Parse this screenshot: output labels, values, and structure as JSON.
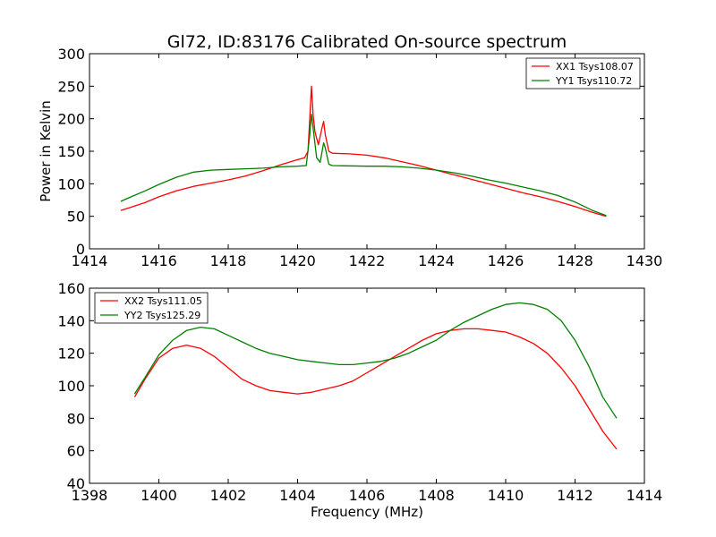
{
  "figure": {
    "title": "Gl72, ID:83176 Calibrated On-source spectrum",
    "ylabel": "Power in Kelvin",
    "xlabel": "Frequency (MHz)"
  },
  "chart_data": [
    {
      "type": "line",
      "title": "Gl72, ID:83176 Calibrated On-source spectrum",
      "xlabel": "",
      "ylabel": "Power in Kelvin",
      "xlim": [
        1414,
        1430
      ],
      "ylim": [
        0,
        300
      ],
      "xticks": [
        1414,
        1416,
        1418,
        1420,
        1422,
        1424,
        1426,
        1428,
        1430
      ],
      "yticks": [
        0,
        50,
        100,
        150,
        200,
        250,
        300
      ],
      "grid": false,
      "legend_position": "top-right",
      "series": [
        {
          "name": "XX1 Tsys108.07",
          "color": "#ff0000",
          "points": [
            [
              1414.9,
              59
            ],
            [
              1415.2,
              64
            ],
            [
              1415.6,
              71
            ],
            [
              1416.0,
              80
            ],
            [
              1416.5,
              89
            ],
            [
              1417.0,
              96
            ],
            [
              1417.5,
              101
            ],
            [
              1418.0,
              106
            ],
            [
              1418.5,
              112
            ],
            [
              1419.0,
              120
            ],
            [
              1419.5,
              129
            ],
            [
              1420.0,
              137
            ],
            [
              1420.2,
              140
            ],
            [
              1420.3,
              150
            ],
            [
              1420.35,
              200
            ],
            [
              1420.4,
              250
            ],
            [
              1420.45,
              205
            ],
            [
              1420.5,
              180
            ],
            [
              1420.6,
              160
            ],
            [
              1420.7,
              185
            ],
            [
              1420.75,
              196
            ],
            [
              1420.8,
              175
            ],
            [
              1420.9,
              150
            ],
            [
              1421.0,
              147
            ],
            [
              1421.5,
              146
            ],
            [
              1422.0,
              144
            ],
            [
              1422.5,
              140
            ],
            [
              1423.0,
              134
            ],
            [
              1423.5,
              128
            ],
            [
              1424.0,
              121
            ],
            [
              1424.5,
              114
            ],
            [
              1425.0,
              107
            ],
            [
              1425.5,
              100
            ],
            [
              1426.0,
              93
            ],
            [
              1426.5,
              86
            ],
            [
              1427.0,
              80
            ],
            [
              1427.5,
              73
            ],
            [
              1428.0,
              65
            ],
            [
              1428.5,
              56
            ],
            [
              1428.9,
              50
            ]
          ]
        },
        {
          "name": "YY1 Tsys110.72",
          "color": "#008000",
          "points": [
            [
              1414.9,
              73
            ],
            [
              1415.2,
              80
            ],
            [
              1415.6,
              89
            ],
            [
              1416.0,
              99
            ],
            [
              1416.5,
              110
            ],
            [
              1417.0,
              118
            ],
            [
              1417.5,
              121
            ],
            [
              1418.0,
              122
            ],
            [
              1418.5,
              123
            ],
            [
              1419.0,
              124
            ],
            [
              1419.5,
              126
            ],
            [
              1420.0,
              127
            ],
            [
              1420.25,
              128
            ],
            [
              1420.35,
              175
            ],
            [
              1420.4,
              207
            ],
            [
              1420.45,
              185
            ],
            [
              1420.55,
              140
            ],
            [
              1420.65,
              133
            ],
            [
              1420.75,
              163
            ],
            [
              1420.8,
              155
            ],
            [
              1420.9,
              130
            ],
            [
              1421.0,
              128
            ],
            [
              1422.0,
              127
            ],
            [
              1422.5,
              127
            ],
            [
              1423.0,
              126
            ],
            [
              1423.5,
              124
            ],
            [
              1424.0,
              121
            ],
            [
              1424.5,
              117
            ],
            [
              1425.0,
              112
            ],
            [
              1425.5,
              106
            ],
            [
              1426.0,
              101
            ],
            [
              1426.5,
              95
            ],
            [
              1427.0,
              89
            ],
            [
              1427.5,
              82
            ],
            [
              1428.0,
              72
            ],
            [
              1428.5,
              59
            ],
            [
              1428.9,
              51
            ]
          ]
        }
      ]
    },
    {
      "type": "line",
      "title": "",
      "xlabel": "Frequency (MHz)",
      "ylabel": "",
      "xlim": [
        1398,
        1414
      ],
      "ylim": [
        40,
        160
      ],
      "xticks": [
        1398,
        1400,
        1402,
        1404,
        1406,
        1408,
        1410,
        1412,
        1414
      ],
      "yticks": [
        40,
        60,
        80,
        100,
        120,
        140,
        160
      ],
      "grid": false,
      "legend_position": "top-left",
      "series": [
        {
          "name": "XX2 Tsys111.05",
          "color": "#ff0000",
          "points": [
            [
              1399.3,
              93
            ],
            [
              1399.6,
              104
            ],
            [
              1400.0,
              117
            ],
            [
              1400.4,
              123
            ],
            [
              1400.8,
              125
            ],
            [
              1401.2,
              123
            ],
            [
              1401.6,
              118
            ],
            [
              1402.0,
              111
            ],
            [
              1402.4,
              104
            ],
            [
              1402.8,
              100
            ],
            [
              1403.2,
              97
            ],
            [
              1403.6,
              96
            ],
            [
              1404.0,
              95
            ],
            [
              1404.4,
              96
            ],
            [
              1404.8,
              98
            ],
            [
              1405.2,
              100
            ],
            [
              1405.6,
              103
            ],
            [
              1406.0,
              108
            ],
            [
              1406.4,
              113
            ],
            [
              1406.8,
              118
            ],
            [
              1407.2,
              123
            ],
            [
              1407.6,
              128
            ],
            [
              1408.0,
              132
            ],
            [
              1408.4,
              134
            ],
            [
              1408.8,
              135
            ],
            [
              1409.2,
              135
            ],
            [
              1409.6,
              134
            ],
            [
              1410.0,
              133
            ],
            [
              1410.4,
              130
            ],
            [
              1410.8,
              126
            ],
            [
              1411.2,
              120
            ],
            [
              1411.6,
              111
            ],
            [
              1412.0,
              100
            ],
            [
              1412.4,
              86
            ],
            [
              1412.8,
              72
            ],
            [
              1413.2,
              61
            ]
          ]
        },
        {
          "name": "YY2 Tsys125.29",
          "color": "#008000",
          "points": [
            [
              1399.3,
              95
            ],
            [
              1399.6,
              105
            ],
            [
              1400.0,
              119
            ],
            [
              1400.4,
              128
            ],
            [
              1400.8,
              134
            ],
            [
              1401.2,
              136
            ],
            [
              1401.6,
              135
            ],
            [
              1402.0,
              131
            ],
            [
              1402.4,
              127
            ],
            [
              1402.8,
              123
            ],
            [
              1403.2,
              120
            ],
            [
              1403.6,
              118
            ],
            [
              1404.0,
              116
            ],
            [
              1404.4,
              115
            ],
            [
              1404.8,
              114
            ],
            [
              1405.2,
              113
            ],
            [
              1405.6,
              113
            ],
            [
              1406.0,
              114
            ],
            [
              1406.4,
              115
            ],
            [
              1406.8,
              117
            ],
            [
              1407.2,
              120
            ],
            [
              1407.6,
              124
            ],
            [
              1408.0,
              128
            ],
            [
              1408.4,
              134
            ],
            [
              1408.8,
              139
            ],
            [
              1409.2,
              143
            ],
            [
              1409.6,
              147
            ],
            [
              1410.0,
              150
            ],
            [
              1410.4,
              151
            ],
            [
              1410.8,
              150
            ],
            [
              1411.2,
              147
            ],
            [
              1411.6,
              140
            ],
            [
              1412.0,
              128
            ],
            [
              1412.4,
              112
            ],
            [
              1412.8,
              93
            ],
            [
              1413.2,
              80
            ]
          ]
        }
      ]
    }
  ]
}
